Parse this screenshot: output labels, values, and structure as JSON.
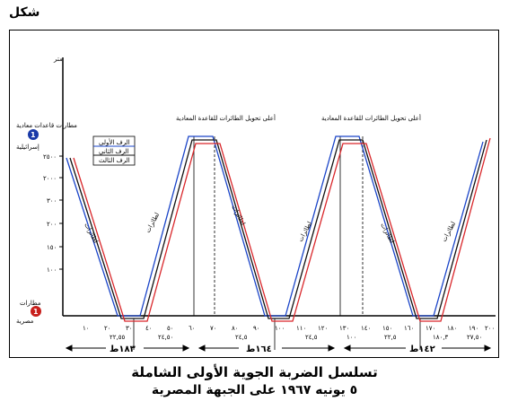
{
  "corner_label": "شكل",
  "caption": {
    "line1": "تسلسل الضربة الجوية الأولى الشاملة",
    "line2": "٥ يونيه ١٩٦٧ على الجبهة المصرية"
  },
  "y_axis": {
    "top_unit": "متر",
    "top_label": "مطارات قاعدات معادية",
    "top_badge": "1",
    "top_badge_label": "إسرائيلية",
    "bottom_label": "مطارات",
    "bottom_badge": "1",
    "bottom_badge_label": "مصرية",
    "ticks": [
      "٢٥٠٠",
      "٢٠٠٠",
      "٣٠٠",
      "٢٠٠",
      "١٥٠",
      "١٠٠"
    ]
  },
  "legend": [
    "الرف الأولى",
    "الرف الثاني",
    "الرف الثالث"
  ],
  "peak_labels": [
    "أعلى تحويل الطائرات للقاعدة المعادية",
    "أعلى تحويل الطائرات للقاعدة المعادية"
  ],
  "segment_labels": [
    "٢٢,٥٥",
    "٢٤,٥٠",
    "٢٤,٥",
    "٢٤,٥",
    "١٠٠",
    "٢٢,٥",
    "١٨٠,٣",
    "٢٧,٥٠"
  ],
  "time_ticks": [
    "١٠",
    "٢٠",
    "٣٠",
    "٤٠",
    "٥٠",
    "٦٠",
    "٧٠",
    "٨٠",
    "٩٠",
    "١٠٠",
    "١١٠",
    "١٢٠",
    "١٣٠",
    "١٤٠",
    "١٥٠",
    "١٦٠",
    "١٧٠",
    "١٨٠",
    "١٩٠",
    "٢٠٠"
  ],
  "totals": [
    "١٨٣ط",
    "١٦٤ط",
    "١٤٢ط"
  ],
  "colors": {
    "series1": "#1a44c8",
    "series2": "#111111",
    "series3": "#d9262a",
    "badge_top": "#1a3aa8",
    "badge_bottom": "#c8201c"
  }
}
